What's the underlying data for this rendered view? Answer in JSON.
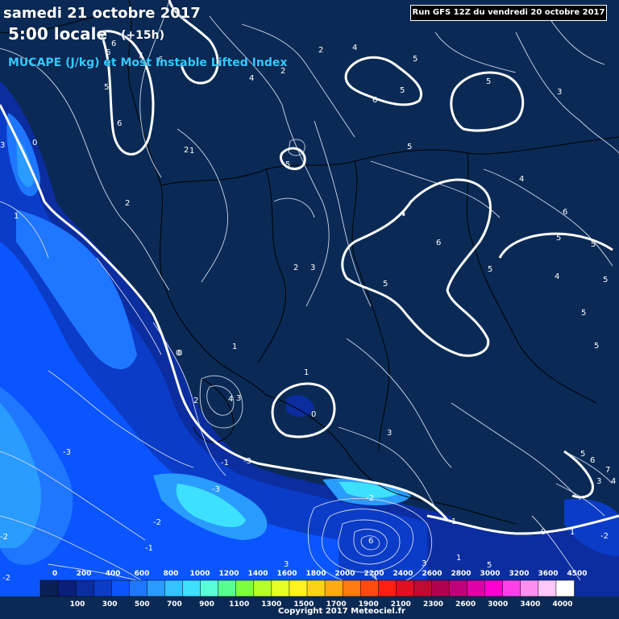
{
  "header": {
    "date": "samedi 21 octobre 2017",
    "time": "5:00 locale",
    "offset": "(+15h)",
    "parameter": "MUCAPE (J/kg) et Most Instable Lifted Index"
  },
  "run_info": "Run GFS 12Z du vendredi 20 octobre 2017",
  "copyright": "Copyright 2017 Meteociel.fr",
  "legend": {
    "colors": [
      "#0b1f55",
      "#0a1f78",
      "#0b2da0",
      "#0b3cc8",
      "#0b55ff",
      "#1f77ff",
      "#2a9bff",
      "#35c2ff",
      "#3ee0ff",
      "#59ffd6",
      "#59ff8f",
      "#7dff3f",
      "#b6ff2a",
      "#e6ff26",
      "#fff21f",
      "#ffd21a",
      "#ffaa15",
      "#ff7a12",
      "#ff4a10",
      "#ff1e10",
      "#e01020",
      "#c00a30",
      "#b00050",
      "#c0007a",
      "#e000a8",
      "#ff00d0",
      "#ff40e8",
      "#ff90f0",
      "#ffc8f8",
      "#ffffff"
    ],
    "top_labels": [
      "0",
      "200",
      "400",
      "600",
      "800",
      "1000",
      "1200",
      "1400",
      "1600",
      "1800",
      "2000",
      "2200",
      "2400",
      "2600",
      "2800",
      "3000",
      "3200",
      "3600",
      "4500"
    ],
    "bottom_labels": [
      "100",
      "300",
      "500",
      "700",
      "900",
      "1100",
      "1300",
      "1500",
      "1700",
      "1900",
      "2100",
      "2300",
      "2600",
      "3000",
      "3400",
      "4000"
    ]
  },
  "lifted_index_labels": [
    {
      "t": "6"
    },
    {
      "t": "6"
    },
    {
      "t": "7"
    },
    {
      "t": "6"
    },
    {
      "t": "5"
    },
    {
      "t": "6"
    },
    {
      "t": "5"
    },
    {
      "t": "4"
    },
    {
      "t": "2"
    },
    {
      "t": "2"
    },
    {
      "t": "4"
    },
    {
      "t": "1"
    },
    {
      "t": "5"
    },
    {
      "t": "5"
    },
    {
      "t": "6"
    },
    {
      "t": "3"
    },
    {
      "t": "5"
    },
    {
      "t": "4"
    },
    {
      "t": "5"
    },
    {
      "t": "4"
    },
    {
      "t": "2"
    },
    {
      "t": "3"
    },
    {
      "t": "4"
    },
    {
      "t": "6"
    },
    {
      "t": "5"
    },
    {
      "t": "5"
    },
    {
      "t": "5"
    },
    {
      "t": "6"
    },
    {
      "t": "5"
    },
    {
      "t": "4"
    },
    {
      "t": "5"
    },
    {
      "t": "5"
    },
    {
      "t": "5"
    },
    {
      "t": "2"
    },
    {
      "t": "3"
    },
    {
      "t": "1"
    },
    {
      "t": "4"
    },
    {
      "t": "3"
    },
    {
      "t": "0"
    },
    {
      "t": "1"
    },
    {
      "t": "2"
    },
    {
      "t": "0"
    },
    {
      "t": "3"
    },
    {
      "t": "-1"
    },
    {
      "t": "-3"
    },
    {
      "t": "-3"
    },
    {
      "t": "-2"
    },
    {
      "t": "-1"
    },
    {
      "t": "-2"
    },
    {
      "t": "-2"
    },
    {
      "t": "6"
    },
    {
      "t": "3"
    },
    {
      "t": "1"
    },
    {
      "t": "2"
    },
    {
      "t": "0"
    },
    {
      "t": "-1"
    },
    {
      "t": "-2"
    },
    {
      "t": "5"
    },
    {
      "t": "6"
    },
    {
      "t": "7"
    },
    {
      "t": "4"
    },
    {
      "t": "0"
    },
    {
      "t": "1"
    },
    {
      "t": "1"
    },
    {
      "t": "0"
    },
    {
      "t": "-3"
    },
    {
      "t": "-2"
    },
    {
      "t": "3"
    },
    {
      "t": "4"
    },
    {
      "t": "5"
    },
    {
      "t": "1"
    },
    {
      "t": "3"
    }
  ]
}
